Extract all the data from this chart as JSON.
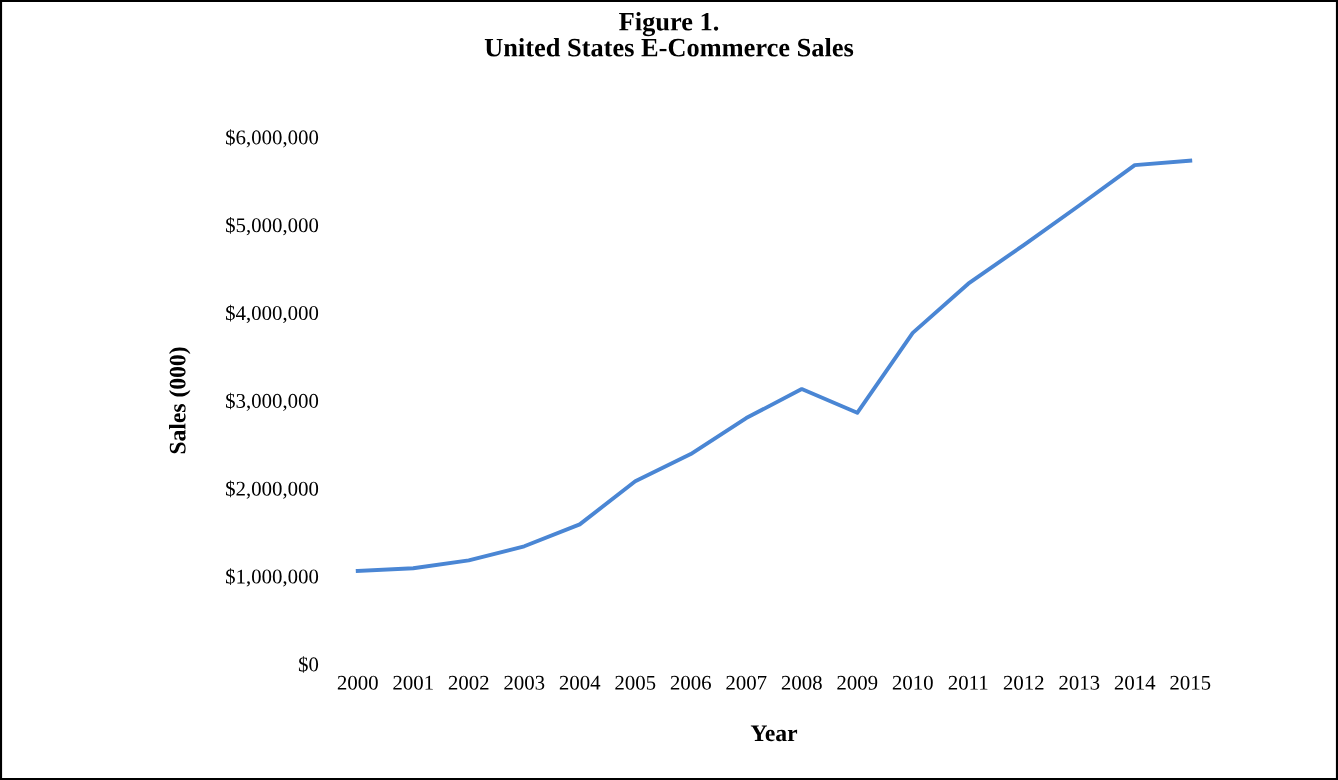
{
  "chart_data": {
    "type": "line",
    "title": "Figure 1.\nUnited States E-Commerce Sales",
    "xlabel": "Year",
    "ylabel": "Sales (000)",
    "categories": [
      "2000",
      "2001",
      "2002",
      "2003",
      "2004",
      "2005",
      "2006",
      "2007",
      "2008",
      "2009",
      "2010",
      "2011",
      "2012",
      "2013",
      "2014",
      "2015"
    ],
    "series": [
      {
        "color": "#4a86d4",
        "values": [
          1060000,
          1090000,
          1180000,
          1340000,
          1590000,
          2080000,
          2390000,
          2800000,
          3130000,
          2860000,
          3770000,
          4330000,
          4770000,
          5220000,
          5680000,
          5730000
        ]
      }
    ],
    "ylim": [
      0,
      6000000
    ],
    "yticks": [
      {
        "value": 0,
        "label": "$0"
      },
      {
        "value": 1000000,
        "label": "$1,000,000"
      },
      {
        "value": 2000000,
        "label": "$2,000,000"
      },
      {
        "value": 3000000,
        "label": "$3,000,000"
      },
      {
        "value": 4000000,
        "label": "$4,000,000"
      },
      {
        "value": 5000000,
        "label": "$5,000,000"
      },
      {
        "value": 6000000,
        "label": "$6,000,000"
      }
    ],
    "grid": false,
    "legend": false,
    "marker": "none",
    "line_style": "solid"
  }
}
